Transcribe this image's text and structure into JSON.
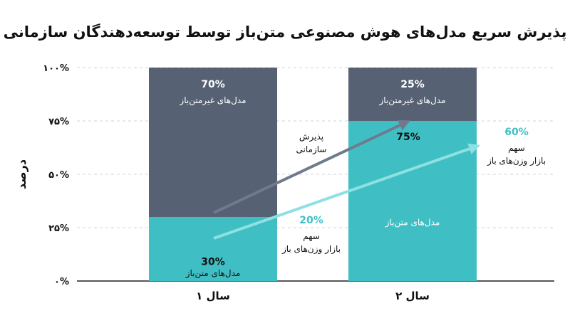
{
  "chart_data": {
    "type": "bar",
    "stacked": true,
    "title": "پذیرش سریع مدل‌های هوش مصنوعی متن‌باز توسط توسعه‌دهندگان سازمانی",
    "ylabel": "درصد",
    "xlabel": "",
    "ylim": [
      0,
      100
    ],
    "y_ticks": [
      "۰%",
      "۲۵%",
      "۵۰%",
      "۷۵%",
      "۱۰۰%"
    ],
    "categories": [
      "سال ۱",
      "سال ۲"
    ],
    "grid": true,
    "series": [
      {
        "name": "مدل‌های متن‌باز",
        "values": [
          30,
          75
        ],
        "labels": [
          "30%",
          "75%"
        ],
        "color": "#3fbfc4"
      },
      {
        "name": "مدل‌های غیرمتن‌باز",
        "values": [
          70,
          25
        ],
        "labels": [
          "70%",
          "25%"
        ],
        "color": "#566273"
      }
    ],
    "annotations": {
      "adoption_label": "پذیرش سازمانی",
      "market_share_label": "سهم بازار وزن‌های باز",
      "market_share_year1": "20%",
      "market_share_year2": "60%",
      "adoption_arrow_color": "#6f7a8c",
      "share_arrow_color": "#8fe0e3"
    }
  }
}
